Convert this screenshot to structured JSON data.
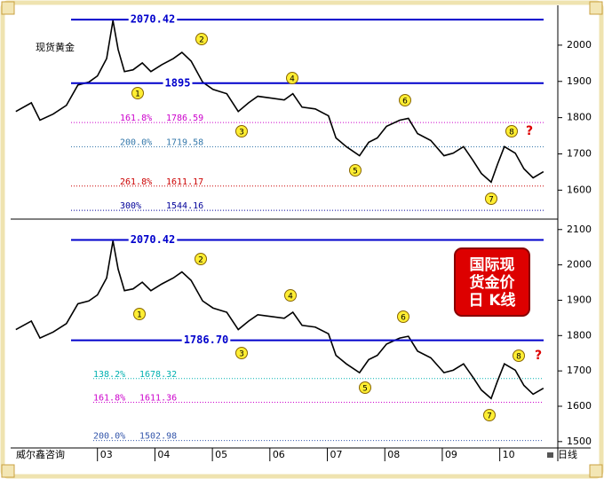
{
  "chart_data": [
    {
      "type": "line",
      "title": "现货黄金",
      "color": "#000000",
      "x": [
        1.58,
        1.85,
        2.0,
        2.23,
        2.46,
        2.66,
        2.85,
        3.0,
        3.16,
        3.27,
        3.36,
        3.47,
        3.62,
        3.78,
        3.93,
        4.12,
        4.32,
        4.47,
        4.63,
        4.83,
        5.01,
        5.25,
        5.45,
        5.63,
        5.79,
        6.02,
        6.25,
        6.4,
        6.56,
        6.79,
        7.02,
        7.15,
        7.33,
        7.56,
        7.72,
        7.87,
        8.03,
        8.26,
        8.41,
        8.57,
        8.8,
        9.03,
        9.19,
        9.37,
        9.53,
        9.68,
        9.85,
        9.96,
        10.08,
        10.27,
        10.42,
        10.58,
        10.76
      ],
      "values": [
        1817,
        1841,
        1793,
        1810,
        1834,
        1890,
        1898,
        1915,
        1963,
        2068,
        1988,
        1927,
        1932,
        1951,
        1927,
        1946,
        1963,
        1980,
        1956,
        1898,
        1878,
        1866,
        1817,
        1841,
        1859,
        1854,
        1849,
        1866,
        1829,
        1824,
        1805,
        1744,
        1720,
        1695,
        1732,
        1744,
        1776,
        1793,
        1798,
        1756,
        1737,
        1695,
        1702,
        1720,
        1683,
        1646,
        1622,
        1671,
        1720,
        1702,
        1659,
        1634,
        1651
      ],
      "xlim": [
        1.49,
        11.01
      ],
      "ylim": [
        1525,
        2105
      ],
      "yticks": [
        1600,
        1700,
        1800,
        1900,
        2000
      ],
      "levels": [
        {
          "value": 2070.42,
          "color": "#0000cc"
        },
        {
          "value": 1895,
          "color": "#0000cc"
        }
      ],
      "fib_levels": [
        {
          "ratio": "161.8%",
          "value": 1786.59,
          "color": "#cc00cc"
        },
        {
          "ratio": "200.0%",
          "value": 1719.58,
          "color": "#3377aa"
        },
        {
          "ratio": "261.8%",
          "value": 1611.17,
          "color": "#cc0000"
        },
        {
          "ratio": "300%",
          "value": 1544.16,
          "color": "#000099"
        }
      ],
      "wave_labels": [
        "1",
        "2",
        "3",
        "4",
        "5",
        "6",
        "7",
        "8"
      ],
      "question_mark": "?"
    },
    {
      "type": "line",
      "title": [
        "国际现",
        "货金价",
        "日  K线"
      ],
      "color": "#000000",
      "x": [
        1.58,
        1.85,
        2.0,
        2.23,
        2.46,
        2.66,
        2.85,
        3.0,
        3.16,
        3.27,
        3.36,
        3.47,
        3.62,
        3.78,
        3.93,
        4.12,
        4.32,
        4.47,
        4.63,
        4.83,
        5.01,
        5.25,
        5.45,
        5.63,
        5.79,
        6.02,
        6.25,
        6.4,
        6.56,
        6.79,
        7.02,
        7.15,
        7.33,
        7.56,
        7.72,
        7.87,
        8.03,
        8.26,
        8.41,
        8.57,
        8.8,
        9.03,
        9.19,
        9.37,
        9.53,
        9.68,
        9.85,
        9.96,
        10.08,
        10.27,
        10.42,
        10.58,
        10.76
      ],
      "values": [
        1817,
        1841,
        1793,
        1810,
        1834,
        1890,
        1898,
        1915,
        1963,
        2068,
        1988,
        1927,
        1932,
        1951,
        1927,
        1946,
        1963,
        1980,
        1956,
        1898,
        1878,
        1866,
        1817,
        1841,
        1859,
        1854,
        1849,
        1866,
        1829,
        1824,
        1805,
        1744,
        1720,
        1695,
        1732,
        1744,
        1776,
        1793,
        1798,
        1756,
        1737,
        1695,
        1702,
        1720,
        1683,
        1646,
        1622,
        1671,
        1720,
        1702,
        1659,
        1634,
        1651
      ],
      "xlim": [
        1.49,
        11.01
      ],
      "ylim": [
        1482,
        2122
      ],
      "yticks": [
        1500,
        1600,
        1700,
        1800,
        1900,
        2000,
        2100
      ],
      "xticks": [
        {
          "value": 3,
          "label": "03"
        },
        {
          "value": 4,
          "label": "04"
        },
        {
          "value": 5,
          "label": "05"
        },
        {
          "value": 6,
          "label": "06"
        },
        {
          "value": 7,
          "label": "07"
        },
        {
          "value": 8,
          "label": "08"
        },
        {
          "value": 9,
          "label": "09"
        },
        {
          "value": 10,
          "label": "10"
        }
      ],
      "levels": [
        {
          "value": 2070.42,
          "color": "#0000cc"
        },
        {
          "value": 1786.7,
          "label": "1786.70",
          "color": "#0000cc"
        }
      ],
      "fib_levels": [
        {
          "ratio": "138.2%",
          "value": 1678.32,
          "color": "#00b0b0"
        },
        {
          "ratio": "161.8%",
          "value": 1611.36,
          "color": "#cc00cc"
        },
        {
          "ratio": "200.0%",
          "value": 1502.98,
          "color": "#3355aa"
        }
      ],
      "wave_labels": [
        "1",
        "2",
        "3",
        "4",
        "5",
        "6",
        "7",
        "8"
      ],
      "question_mark": "?"
    }
  ],
  "footer": {
    "source": "威尔鑫咨询",
    "period": "日线"
  }
}
